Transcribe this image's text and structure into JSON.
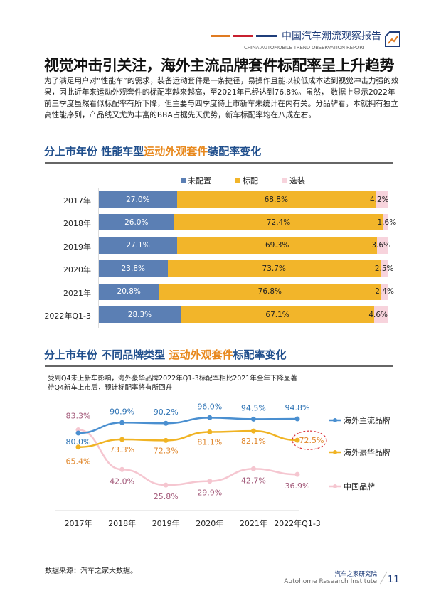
{
  "header": {
    "report_cn": "中国汽车潮流观察报告",
    "report_en": "CHINA AUTOMOBILE TREND OBSERVATION REPORT",
    "bar_colors": [
      "#e07b22",
      "#c8202f",
      "#1f3d7a"
    ]
  },
  "title": "视觉冲击引关注，海外主流品牌套件标配率呈上升趋势",
  "paragraph": "为了满足用户对“性能车”的需求，装备运动套件是一条捷径，易操作且能以较低成本达到视觉冲击力强的效果，因此近年来运动外观套件的标配率越来越高，至2021年已经达到76.8%。虽然， 数据上显示2022年前三季度虽然看似标配率有所下降，但主要与四季度待上市新车未统计在内有关。分品牌看，本就拥有独立高性能序列，产品线又尤为丰富的BBA占据先天优势，新车标配率均在八成左右。",
  "section1": {
    "a": "分上市年份  性能车型",
    "b": "运动外观套件",
    "c": "装配率变化"
  },
  "section2": {
    "a": "分上市年份  不同品牌类型 ",
    "b": "运动外观套件",
    "c": "标配率变化"
  },
  "chart_data": [
    {
      "type": "bar",
      "stacked": true,
      "orientation": "horizontal",
      "legend_position": "top",
      "categories": [
        "2017年",
        "2018年",
        "2019年",
        "2020年",
        "2021年",
        "2022年Q1-3"
      ],
      "series": [
        {
          "name": "未配置",
          "color": "#5b7fb4",
          "values": [
            27.0,
            26.0,
            27.1,
            23.8,
            20.8,
            28.3
          ],
          "labels": [
            "27.0%",
            "26.0%",
            "27.1%",
            "23.8%",
            "20.8%",
            "28.3%"
          ]
        },
        {
          "name": "标配",
          "color": "#f2b52a",
          "values": [
            68.8,
            72.4,
            69.3,
            73.7,
            76.8,
            67.1
          ],
          "labels": [
            "68.8%",
            "72.4%",
            "69.3%",
            "73.7%",
            "76.8%",
            "67.1%"
          ]
        },
        {
          "name": "选装",
          "color": "#f7d3dc",
          "values": [
            4.2,
            1.6,
            3.6,
            2.5,
            2.4,
            4.6
          ],
          "labels": [
            "4.2%",
            "1.6%",
            "3.6%",
            "2.5%",
            "2.4%",
            "4.6%"
          ]
        }
      ]
    },
    {
      "type": "line",
      "legend_position": "right",
      "annotation": "受到Q4未上新车影响，海外豪华品牌2022年Q1-3标配率相比2021年全年下降显著\n待Q4新车上市后，预计标配率将有所回升",
      "categories": [
        "2017年",
        "2018年",
        "2019年",
        "2020年",
        "2021年",
        "2022年Q1-3"
      ],
      "highlight": {
        "series": 1,
        "index": 5,
        "color": "#d9303a"
      },
      "series": [
        {
          "name": "海外主流品牌",
          "color": "#4a8fd0",
          "label_color": "#2f74b5",
          "values": [
            80.0,
            90.9,
            90.2,
            96.0,
            94.5,
            94.8
          ],
          "labels": [
            "80.0%",
            "90.9%",
            "90.2%",
            "96.0%",
            "94.5%",
            "94.8%"
          ]
        },
        {
          "name": "海外豪华品牌",
          "color": "#f0b323",
          "label_color": "#e0862a",
          "values": [
            65.4,
            73.3,
            72.3,
            81.1,
            82.1,
            72.5
          ],
          "labels": [
            "65.4%",
            "73.3%",
            "72.3%",
            "81.1%",
            "82.1%",
            "72.5%"
          ]
        },
        {
          "name": "中国品牌",
          "color": "#f5c6d0",
          "label_color": "#a35a7a",
          "values": [
            83.3,
            42.0,
            25.8,
            29.9,
            42.7,
            36.9
          ],
          "labels": [
            "83.3%",
            "42.0%",
            "25.8%",
            "29.9%",
            "42.7%",
            "36.9%"
          ]
        }
      ]
    }
  ],
  "source": "数据来源：汽车之家大数据。",
  "footer": {
    "org_cn": "汽车之家研究院",
    "org_en": "Autohome Research Institute",
    "page": "11"
  }
}
